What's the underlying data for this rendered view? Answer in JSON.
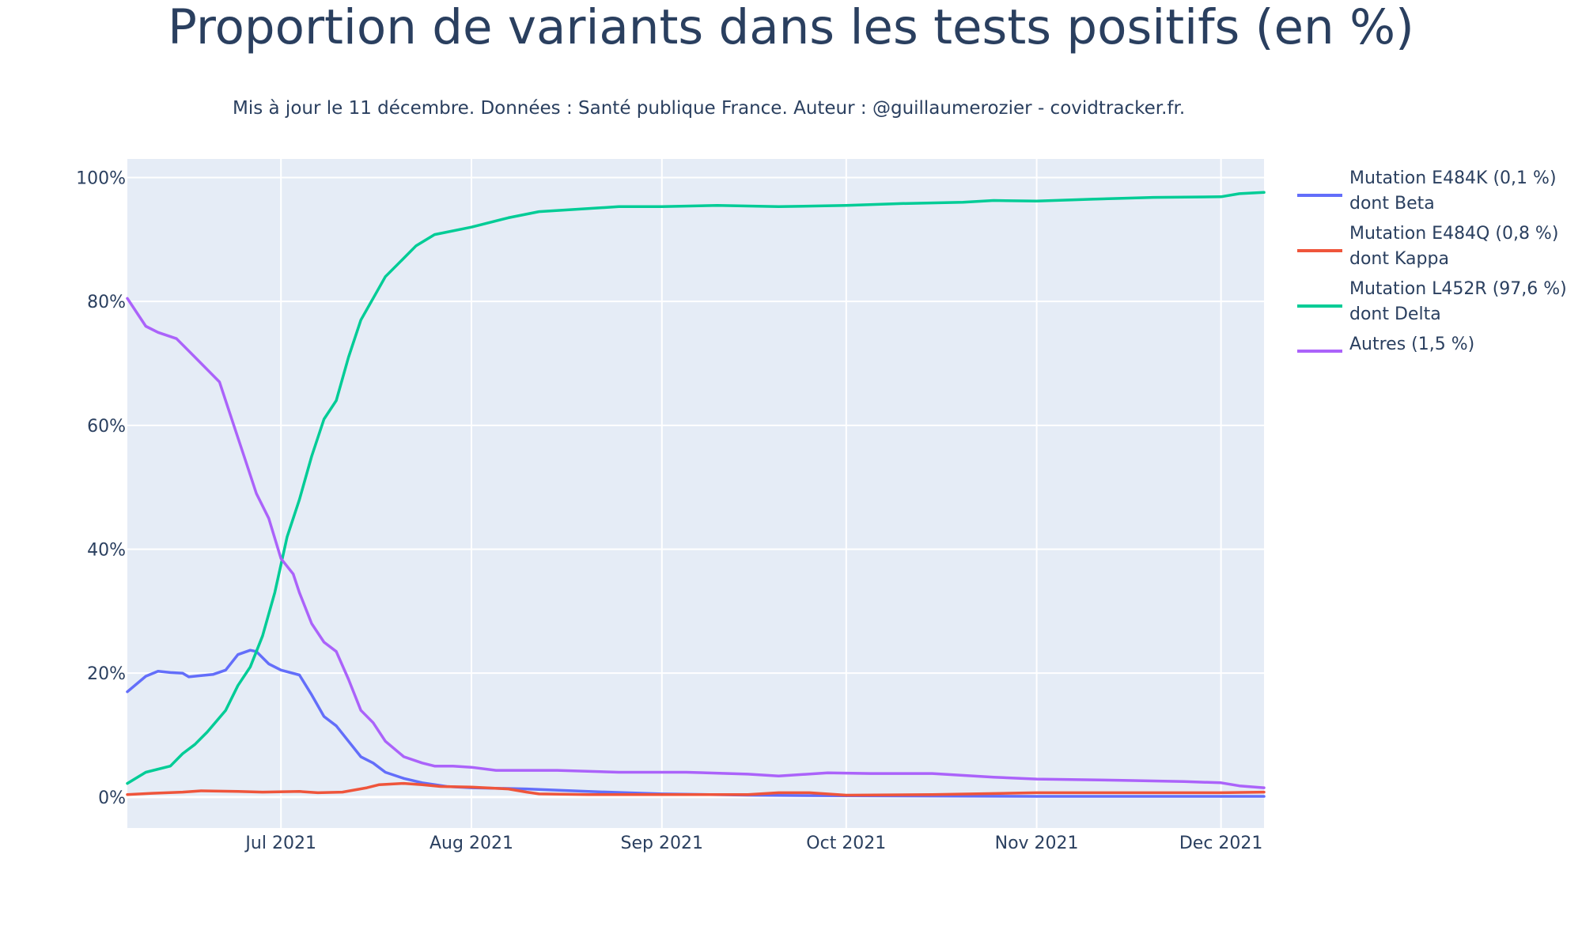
{
  "chart_data": {
    "type": "line",
    "title": "Proportion de variants dans les tests positifs (en %)",
    "subtitle": "Mis à jour le 11 décembre. Données : Santé publique France. Auteur : @guillaumerozier - covidtracker.fr.",
    "xlabel": "",
    "ylabel": "",
    "x_range": [
      "2021-06-06",
      "2021-12-08"
    ],
    "ylim": [
      -5,
      103
    ],
    "y_ticks": [
      0,
      20,
      40,
      60,
      80,
      100
    ],
    "y_tick_labels": [
      "0%",
      "20%",
      "40%",
      "60%",
      "80%",
      "100%"
    ],
    "x_ticks": [
      "2021-07-01",
      "2021-08-01",
      "2021-09-01",
      "2021-10-01",
      "2021-11-01",
      "2021-12-01"
    ],
    "x_tick_labels": [
      "Jul 2021",
      "Aug 2021",
      "Sep 2021",
      "Oct 2021",
      "Nov 2021",
      "Dec 2021"
    ],
    "grid": true,
    "legend_position": "right",
    "background": "#e5ecf6",
    "series": [
      {
        "name": "Mutation E484K (0,1 %) dont Beta",
        "color": "#636efa",
        "points": [
          [
            "2021-06-06",
            17
          ],
          [
            "2021-06-09",
            19.5
          ],
          [
            "2021-06-11",
            20.3
          ],
          [
            "2021-06-13",
            20.1
          ],
          [
            "2021-06-15",
            20
          ],
          [
            "2021-06-16",
            19.4
          ],
          [
            "2021-06-18",
            19.6
          ],
          [
            "2021-06-20",
            19.8
          ],
          [
            "2021-06-22",
            20.5
          ],
          [
            "2021-06-24",
            23
          ],
          [
            "2021-06-26",
            23.7
          ],
          [
            "2021-06-27",
            23.5
          ],
          [
            "2021-06-29",
            21.5
          ],
          [
            "2021-07-01",
            20.5
          ],
          [
            "2021-07-04",
            19.7
          ],
          [
            "2021-07-06",
            16.5
          ],
          [
            "2021-07-08",
            13
          ],
          [
            "2021-07-10",
            11.5
          ],
          [
            "2021-07-12",
            9
          ],
          [
            "2021-07-14",
            6.5
          ],
          [
            "2021-07-16",
            5.5
          ],
          [
            "2021-07-18",
            4
          ],
          [
            "2021-07-21",
            3
          ],
          [
            "2021-07-24",
            2.3
          ],
          [
            "2021-07-28",
            1.7
          ],
          [
            "2021-08-01",
            1.5
          ],
          [
            "2021-08-10",
            1.3
          ],
          [
            "2021-08-20",
            0.9
          ],
          [
            "2021-09-01",
            0.5
          ],
          [
            "2021-09-15",
            0.3
          ],
          [
            "2021-10-01",
            0.2
          ],
          [
            "2021-11-01",
            0.1
          ],
          [
            "2021-12-08",
            0.1
          ]
        ]
      },
      {
        "name": "Mutation E484Q (0,8 %) dont Kappa",
        "color": "#ef553b",
        "points": [
          [
            "2021-06-06",
            0.4
          ],
          [
            "2021-06-10",
            0.6
          ],
          [
            "2021-06-15",
            0.8
          ],
          [
            "2021-06-18",
            1
          ],
          [
            "2021-06-24",
            0.9
          ],
          [
            "2021-06-28",
            0.8
          ],
          [
            "2021-07-04",
            0.9
          ],
          [
            "2021-07-07",
            0.7
          ],
          [
            "2021-07-11",
            0.8
          ],
          [
            "2021-07-15",
            1.5
          ],
          [
            "2021-07-17",
            2
          ],
          [
            "2021-07-21",
            2.2
          ],
          [
            "2021-07-24",
            2
          ],
          [
            "2021-07-27",
            1.7
          ],
          [
            "2021-08-01",
            1.6
          ],
          [
            "2021-08-07",
            1.3
          ],
          [
            "2021-08-10",
            0.8
          ],
          [
            "2021-08-12",
            0.5
          ],
          [
            "2021-08-20",
            0.4
          ],
          [
            "2021-09-01",
            0.4
          ],
          [
            "2021-09-15",
            0.4
          ],
          [
            "2021-09-20",
            0.7
          ],
          [
            "2021-09-25",
            0.7
          ],
          [
            "2021-10-01",
            0.3
          ],
          [
            "2021-10-15",
            0.4
          ],
          [
            "2021-11-01",
            0.7
          ],
          [
            "2021-11-15",
            0.7
          ],
          [
            "2021-12-01",
            0.7
          ],
          [
            "2021-12-08",
            0.8
          ]
        ]
      },
      {
        "name": "Mutation L452R (97,6 %) dont Delta",
        "color": "#00cc96",
        "points": [
          [
            "2021-06-06",
            2.2
          ],
          [
            "2021-06-09",
            4
          ],
          [
            "2021-06-13",
            5
          ],
          [
            "2021-06-15",
            7
          ],
          [
            "2021-06-17",
            8.5
          ],
          [
            "2021-06-19",
            10.5
          ],
          [
            "2021-06-22",
            14
          ],
          [
            "2021-06-24",
            18
          ],
          [
            "2021-06-26",
            21
          ],
          [
            "2021-06-28",
            26
          ],
          [
            "2021-06-30",
            33
          ],
          [
            "2021-07-02",
            42
          ],
          [
            "2021-07-04",
            48
          ],
          [
            "2021-07-06",
            55
          ],
          [
            "2021-07-08",
            61
          ],
          [
            "2021-07-10",
            64
          ],
          [
            "2021-07-12",
            71
          ],
          [
            "2021-07-14",
            77
          ],
          [
            "2021-07-16",
            80.5
          ],
          [
            "2021-07-18",
            84
          ],
          [
            "2021-07-20",
            86
          ],
          [
            "2021-07-23",
            89
          ],
          [
            "2021-07-26",
            90.8
          ],
          [
            "2021-08-01",
            92
          ],
          [
            "2021-08-07",
            93.5
          ],
          [
            "2021-08-12",
            94.5
          ],
          [
            "2021-08-25",
            95.3
          ],
          [
            "2021-09-01",
            95.3
          ],
          [
            "2021-09-10",
            95.5
          ],
          [
            "2021-09-20",
            95.3
          ],
          [
            "2021-10-01",
            95.5
          ],
          [
            "2021-10-10",
            95.8
          ],
          [
            "2021-10-20",
            96
          ],
          [
            "2021-10-25",
            96.3
          ],
          [
            "2021-11-01",
            96.2
          ],
          [
            "2021-11-10",
            96.5
          ],
          [
            "2021-11-20",
            96.8
          ],
          [
            "2021-12-01",
            96.9
          ],
          [
            "2021-12-04",
            97.4
          ],
          [
            "2021-12-08",
            97.6
          ]
        ]
      },
      {
        "name": "Autres (1,5 %)",
        "color": "#ab63fa",
        "points": [
          [
            "2021-06-06",
            80.5
          ],
          [
            "2021-06-09",
            76
          ],
          [
            "2021-06-11",
            75
          ],
          [
            "2021-06-14",
            74
          ],
          [
            "2021-06-16",
            72
          ],
          [
            "2021-06-19",
            69
          ],
          [
            "2021-06-21",
            67
          ],
          [
            "2021-06-23",
            61
          ],
          [
            "2021-06-25",
            55
          ],
          [
            "2021-06-27",
            49
          ],
          [
            "2021-06-29",
            45
          ],
          [
            "2021-07-01",
            38.5
          ],
          [
            "2021-07-03",
            36
          ],
          [
            "2021-07-04",
            33
          ],
          [
            "2021-07-06",
            28
          ],
          [
            "2021-07-08",
            25
          ],
          [
            "2021-07-10",
            23.5
          ],
          [
            "2021-07-12",
            19
          ],
          [
            "2021-07-14",
            14
          ],
          [
            "2021-07-16",
            12
          ],
          [
            "2021-07-18",
            9
          ],
          [
            "2021-07-21",
            6.5
          ],
          [
            "2021-07-24",
            5.5
          ],
          [
            "2021-07-26",
            5
          ],
          [
            "2021-07-29",
            5
          ],
          [
            "2021-08-01",
            4.8
          ],
          [
            "2021-08-05",
            4.3
          ],
          [
            "2021-08-15",
            4.3
          ],
          [
            "2021-08-25",
            4
          ],
          [
            "2021-09-05",
            4
          ],
          [
            "2021-09-15",
            3.7
          ],
          [
            "2021-09-20",
            3.4
          ],
          [
            "2021-09-28",
            3.9
          ],
          [
            "2021-10-05",
            3.8
          ],
          [
            "2021-10-15",
            3.8
          ],
          [
            "2021-10-25",
            3.2
          ],
          [
            "2021-11-01",
            2.9
          ],
          [
            "2021-11-15",
            2.7
          ],
          [
            "2021-11-25",
            2.5
          ],
          [
            "2021-12-01",
            2.3
          ],
          [
            "2021-12-04",
            1.8
          ],
          [
            "2021-12-08",
            1.5
          ]
        ]
      }
    ]
  }
}
